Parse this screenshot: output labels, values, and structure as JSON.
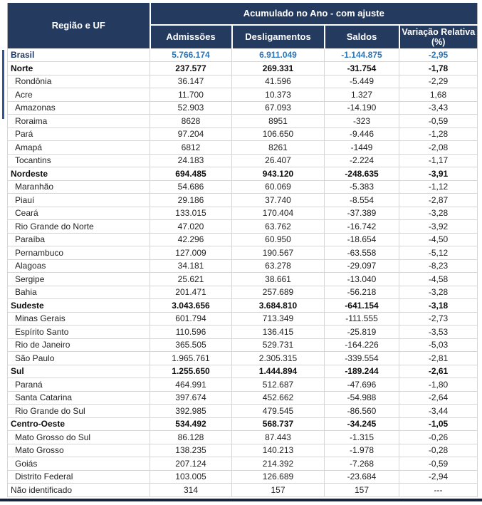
{
  "colors": {
    "header_bg": "#243a5e",
    "brasil_label": "#1f3864",
    "brasil_num": "#2e75b6",
    "accent_bar": "#2f5597",
    "bottom_bar": "#17243c"
  },
  "chart_data": {
    "type": "table",
    "title": "Acumulado no Ano - com ajuste",
    "header": {
      "region_col": "Região e UF",
      "group_title": "Acumulado no Ano - com ajuste",
      "columns": [
        "Admissões",
        "Desligamentos",
        "Saldos",
        "Variação Relativa (%)"
      ]
    },
    "rows": [
      {
        "style": "brasil",
        "cells": [
          "Brasil",
          "5.766.174",
          "6.911.049",
          "-1.144.875",
          "-2,95"
        ]
      },
      {
        "style": "region",
        "cells": [
          "Norte",
          "237.577",
          "269.331",
          "-31.754",
          "-1,78"
        ]
      },
      {
        "style": "state",
        "cells": [
          "Rondônia",
          "36.147",
          "41.596",
          "-5.449",
          "-2,29"
        ]
      },
      {
        "style": "state",
        "cells": [
          "Acre",
          "11.700",
          "10.373",
          "1.327",
          "1,68"
        ]
      },
      {
        "style": "state",
        "cells": [
          "Amazonas",
          "52.903",
          "67.093",
          "-14.190",
          "-3,43"
        ]
      },
      {
        "style": "state",
        "cells": [
          "Roraima",
          "8628",
          "8951",
          "-323",
          "-0,59"
        ]
      },
      {
        "style": "state",
        "cells": [
          "Pará",
          "97.204",
          "106.650",
          "-9.446",
          "-1,28"
        ]
      },
      {
        "style": "state",
        "cells": [
          "Amapá",
          "6812",
          "8261",
          "-1449",
          "-2,08"
        ]
      },
      {
        "style": "state",
        "cells": [
          "Tocantins",
          "24.183",
          "26.407",
          "-2.224",
          "-1,17"
        ]
      },
      {
        "style": "region",
        "cells": [
          "Nordeste",
          "694.485",
          "943.120",
          "-248.635",
          "-3,91"
        ]
      },
      {
        "style": "state",
        "cells": [
          "Maranhão",
          "54.686",
          "60.069",
          "-5.383",
          "-1,12"
        ]
      },
      {
        "style": "state",
        "cells": [
          "Piauí",
          "29.186",
          "37.740",
          "-8.554",
          "-2,87"
        ]
      },
      {
        "style": "state",
        "cells": [
          "Ceará",
          "133.015",
          "170.404",
          "-37.389",
          "-3,28"
        ]
      },
      {
        "style": "state",
        "cells": [
          "Rio Grande do Norte",
          "47.020",
          "63.762",
          "-16.742",
          "-3,92"
        ]
      },
      {
        "style": "state",
        "cells": [
          "Paraíba",
          "42.296",
          "60.950",
          "-18.654",
          "-4,50"
        ]
      },
      {
        "style": "state",
        "cells": [
          "Pernambuco",
          "127.009",
          "190.567",
          "-63.558",
          "-5,12"
        ]
      },
      {
        "style": "state",
        "cells": [
          "Alagoas",
          "34.181",
          "63.278",
          "-29.097",
          "-8,23"
        ]
      },
      {
        "style": "state",
        "cells": [
          "Sergipe",
          "25.621",
          "38.661",
          "-13.040",
          "-4,58"
        ]
      },
      {
        "style": "state",
        "cells": [
          "Bahia",
          "201.471",
          "257.689",
          "-56.218",
          "-3,28"
        ]
      },
      {
        "style": "region",
        "cells": [
          "Sudeste",
          "3.043.656",
          "3.684.810",
          "-641.154",
          "-3,18"
        ]
      },
      {
        "style": "state",
        "cells": [
          "Minas Gerais",
          "601.794",
          "713.349",
          "-111.555",
          "-2,73"
        ]
      },
      {
        "style": "state",
        "cells": [
          "Espírito Santo",
          "110.596",
          "136.415",
          "-25.819",
          "-3,53"
        ]
      },
      {
        "style": "state",
        "cells": [
          "Rio de Janeiro",
          "365.505",
          "529.731",
          "-164.226",
          "-5,03"
        ]
      },
      {
        "style": "state",
        "cells": [
          "São Paulo",
          "1.965.761",
          "2.305.315",
          "-339.554",
          "-2,81"
        ]
      },
      {
        "style": "region",
        "cells": [
          "Sul",
          "1.255.650",
          "1.444.894",
          "-189.244",
          "-2,61"
        ]
      },
      {
        "style": "state",
        "cells": [
          "Paraná",
          "464.991",
          "512.687",
          "-47.696",
          "-1,80"
        ]
      },
      {
        "style": "state",
        "cells": [
          "Santa Catarina",
          "397.674",
          "452.662",
          "-54.988",
          "-2,64"
        ]
      },
      {
        "style": "state",
        "cells": [
          "Rio Grande do Sul",
          "392.985",
          "479.545",
          "-86.560",
          "-3,44"
        ]
      },
      {
        "style": "region",
        "cells": [
          "Centro-Oeste",
          "534.492",
          "568.737",
          "-34.245",
          "-1,05"
        ]
      },
      {
        "style": "state",
        "cells": [
          "Mato Grosso do Sul",
          "86.128",
          "87.443",
          "-1.315",
          "-0,26"
        ]
      },
      {
        "style": "state",
        "cells": [
          "Mato Grosso",
          "138.235",
          "140.213",
          "-1.978",
          "-0,28"
        ]
      },
      {
        "style": "state",
        "cells": [
          "Goiás",
          "207.124",
          "214.392",
          "-7.268",
          "-0,59"
        ]
      },
      {
        "style": "state",
        "cells": [
          "Distrito Federal",
          "103.005",
          "126.689",
          "-23.684",
          "-2,94"
        ]
      },
      {
        "style": "na",
        "cells": [
          "Não identificado",
          "314",
          "157",
          "157",
          "---"
        ]
      }
    ]
  }
}
